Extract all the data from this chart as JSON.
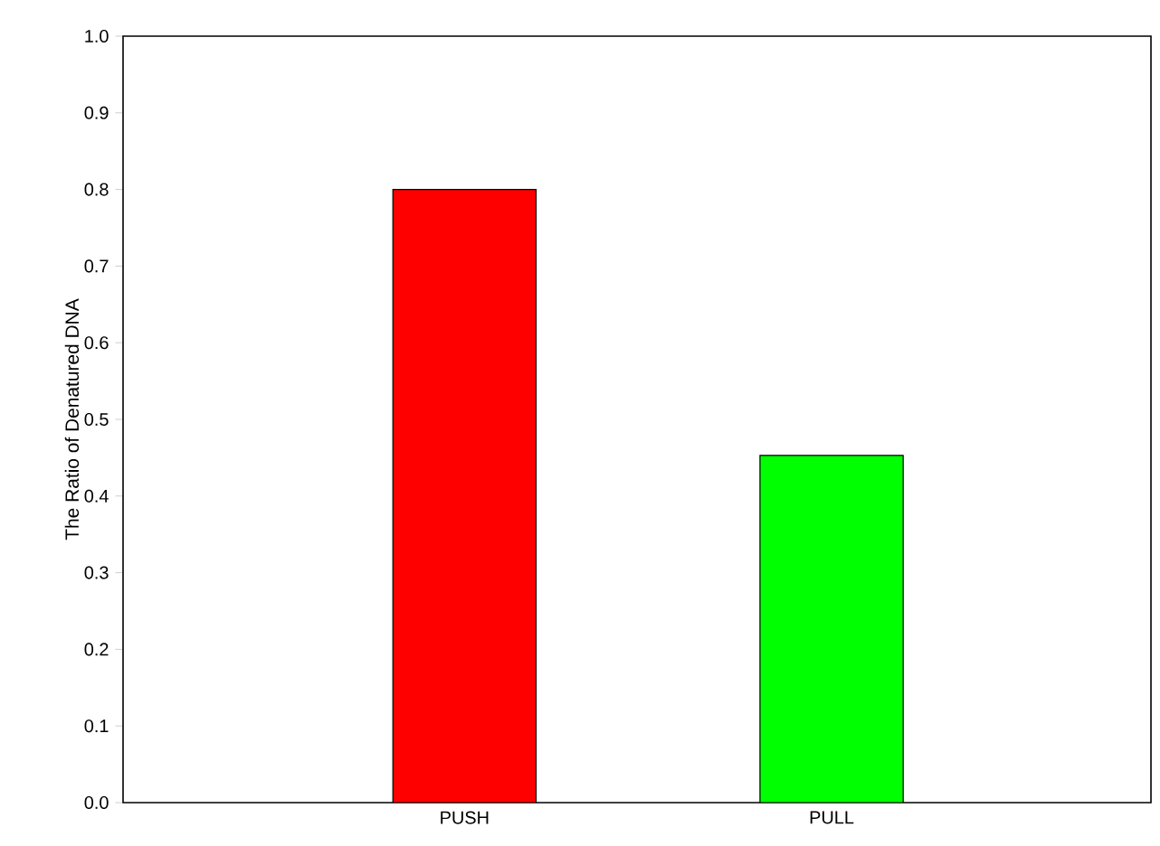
{
  "chart_data": {
    "type": "bar",
    "ylabel": "The Ratio of Denatured DNA",
    "categories": [
      "PUSH",
      "PULL"
    ],
    "values": [
      0.8,
      0.453
    ],
    "colors": [
      "#ff0000",
      "#00ff00"
    ],
    "ylim": [
      0,
      1
    ],
    "yticks": [
      {
        "value": 0,
        "label": "0.0"
      },
      {
        "value": 0.1,
        "label": "0.1"
      },
      {
        "value": 0.2,
        "label": "0.2"
      },
      {
        "value": 0.3,
        "label": "0.3"
      },
      {
        "value": 0.4,
        "label": "0.4"
      },
      {
        "value": 0.5,
        "label": "0.5"
      },
      {
        "value": 0.6,
        "label": "0.6"
      },
      {
        "value": 0.7,
        "label": "0.7"
      },
      {
        "value": 0.8,
        "label": "0.8"
      },
      {
        "value": 0.9,
        "label": "0.9"
      },
      {
        "value": 1,
        "label": "1.0"
      }
    ]
  }
}
